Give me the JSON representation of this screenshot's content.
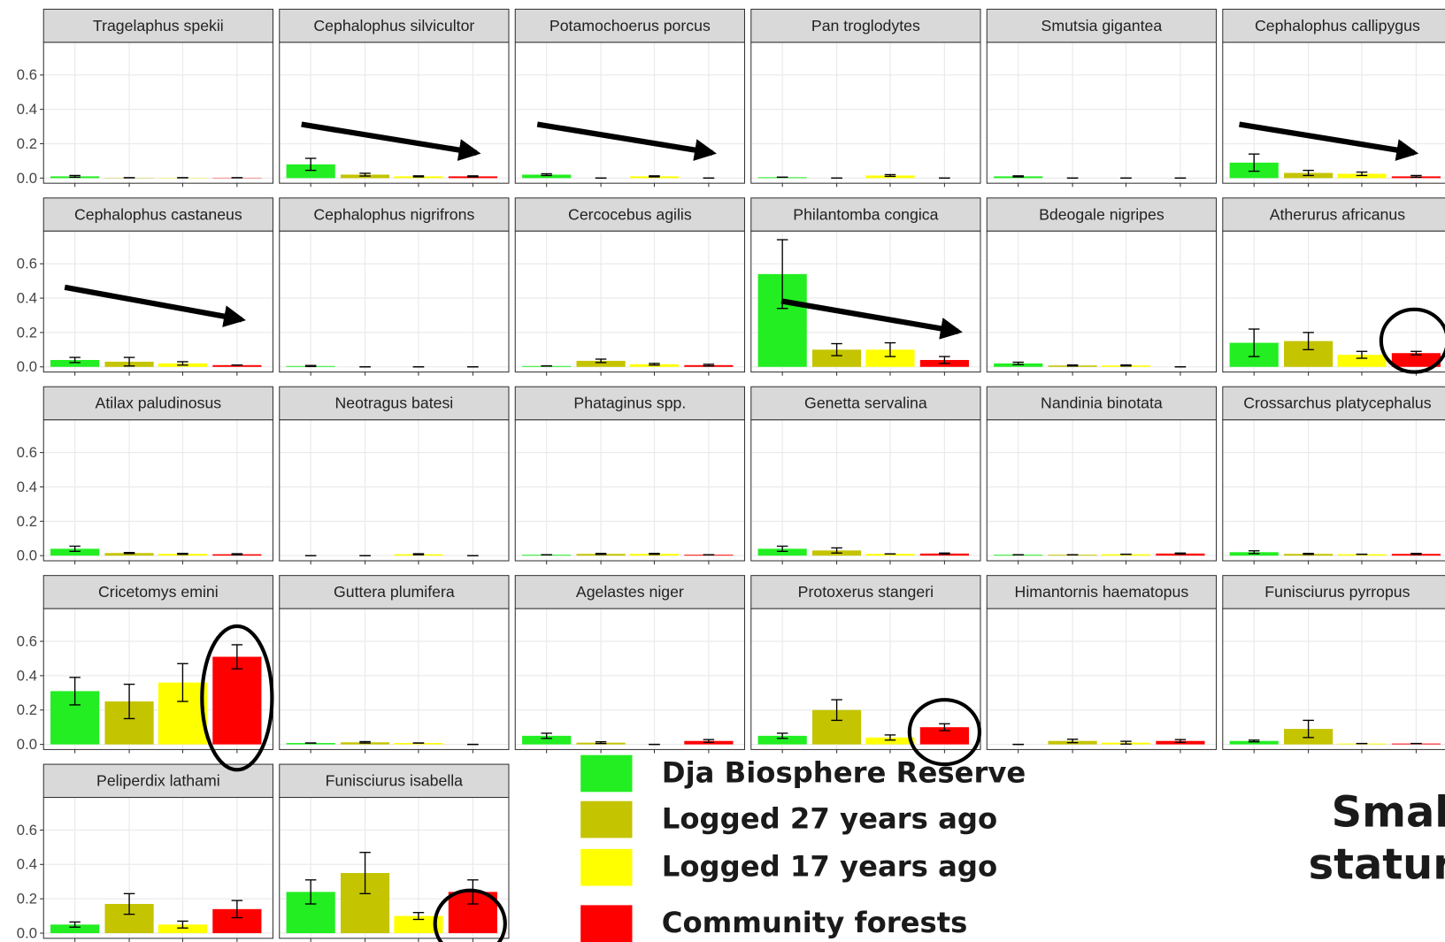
{
  "chart_data": {
    "type": "facet-bar",
    "ylim": [
      -0.03,
      0.79
    ],
    "yticks": [
      {
        "value": 0,
        "label": "0.0"
      },
      {
        "value": 0.2,
        "label": "0.2"
      },
      {
        "value": 0.4,
        "label": "0.4"
      },
      {
        "value": 0.6,
        "label": "0.6"
      }
    ],
    "grid": true,
    "series": [
      {
        "name": "Dja Biosphere Reserve",
        "color": "#22ee22"
      },
      {
        "name": "Logged 27 years ago",
        "color": "#c4c400"
      },
      {
        "name": "Logged 17 years ago",
        "color": "#ffff00"
      },
      {
        "name": "Community forests",
        "color": "#ff0000"
      }
    ],
    "panels": [
      {
        "title": "Tragelaphus spekii",
        "values": [
          0.01,
          0.002,
          0.002,
          0.002
        ],
        "errors": [
          0.005,
          0,
          0,
          0
        ]
      },
      {
        "title": "Cephalophus silvicultor",
        "values": [
          0.08,
          0.02,
          0.01,
          0.01
        ],
        "errors": [
          0.035,
          0.008,
          0.003,
          0.003
        ]
      },
      {
        "title": "Potamochoerus porcus",
        "values": [
          0.02,
          0,
          0.01,
          0
        ],
        "errors": [
          0.005,
          0,
          0.003,
          0
        ]
      },
      {
        "title": "Pan troglodytes",
        "values": [
          0.005,
          0,
          0.015,
          0
        ],
        "errors": [
          0,
          0,
          0.005,
          0
        ]
      },
      {
        "title": "Smutsia gigantea",
        "values": [
          0.01,
          0,
          0,
          0
        ],
        "errors": [
          0.003,
          0,
          0,
          0
        ]
      },
      {
        "title": "Cephalophus callipygus",
        "values": [
          0.09,
          0.03,
          0.025,
          0.01
        ],
        "errors": [
          0.05,
          0.015,
          0.01,
          0.005
        ]
      },
      {
        "title": "Cephalophus castaneus",
        "values": [
          0.04,
          0.03,
          0.02,
          0.01
        ],
        "errors": [
          0.015,
          0.025,
          0.01,
          0
        ]
      },
      {
        "title": "Cephalophus nigrifrons",
        "values": [
          0.005,
          0,
          0,
          0
        ],
        "errors": [
          0.003,
          0,
          0,
          0
        ]
      },
      {
        "title": "Cercocebus agilis",
        "values": [
          0.005,
          0.035,
          0.015,
          0.01
        ],
        "errors": [
          0,
          0.01,
          0.005,
          0.005
        ]
      },
      {
        "title": "Philantomba congica",
        "values": [
          0.54,
          0.1,
          0.1,
          0.04
        ],
        "errors": [
          0.2,
          0.035,
          0.04,
          0.02
        ]
      },
      {
        "title": "Bdeogale nigripes",
        "values": [
          0.02,
          0.008,
          0.008,
          0
        ],
        "errors": [
          0.007,
          0.003,
          0.003,
          0
        ]
      },
      {
        "title": "Atherurus africanus",
        "values": [
          0.14,
          0.15,
          0.07,
          0.08
        ],
        "errors": [
          0.08,
          0.05,
          0.02,
          0.01
        ]
      },
      {
        "title": "Atilax paludinosus",
        "values": [
          0.04,
          0.015,
          0.01,
          0.008
        ],
        "errors": [
          0.015,
          0.003,
          0.003,
          0.003
        ]
      },
      {
        "title": "Neotragus batesi",
        "values": [
          0,
          0,
          0.008,
          0
        ],
        "errors": [
          0,
          0,
          0.003,
          0
        ]
      },
      {
        "title": "Phataginus spp.",
        "values": [
          0.005,
          0.01,
          0.01,
          0.005
        ],
        "errors": [
          0,
          0.003,
          0.003,
          0
        ]
      },
      {
        "title": "Genetta servalina",
        "values": [
          0.04,
          0.03,
          0.01,
          0.012
        ],
        "errors": [
          0.015,
          0.015,
          0,
          0.003
        ]
      },
      {
        "title": "Nandinia binotata",
        "values": [
          0.005,
          0.005,
          0.008,
          0.012
        ],
        "errors": [
          0,
          0,
          0,
          0.003
        ]
      },
      {
        "title": "Crossarchus platycephalus",
        "values": [
          0.02,
          0.01,
          0.008,
          0.01
        ],
        "errors": [
          0.008,
          0.003,
          0,
          0.003
        ]
      },
      {
        "title": "Cricetomys emini",
        "values": [
          0.31,
          0.25,
          0.36,
          0.51
        ],
        "errors": [
          0.08,
          0.1,
          0.11,
          0.07
        ]
      },
      {
        "title": "Guttera plumifera",
        "values": [
          0.008,
          0.012,
          0.008,
          0
        ],
        "errors": [
          0,
          0.004,
          0,
          0
        ]
      },
      {
        "title": "Agelastes niger",
        "values": [
          0.05,
          0.01,
          0,
          0.02
        ],
        "errors": [
          0.015,
          0.005,
          0,
          0.008
        ]
      },
      {
        "title": "Protoxerus stangeri",
        "values": [
          0.05,
          0.2,
          0.04,
          0.1
        ],
        "errors": [
          0.015,
          0.06,
          0.015,
          0.02
        ]
      },
      {
        "title": "Himantornis haematopus",
        "values": [
          0,
          0.02,
          0.01,
          0.02
        ],
        "errors": [
          0,
          0.01,
          0.008,
          0.008
        ]
      },
      {
        "title": "Funisciurus pyrropus",
        "values": [
          0.02,
          0.09,
          0.005,
          0.005
        ],
        "errors": [
          0.005,
          0.05,
          0,
          0
        ]
      },
      {
        "title": "Peliperdix lathami",
        "values": [
          0.05,
          0.17,
          0.05,
          0.14
        ],
        "errors": [
          0.015,
          0.06,
          0.02,
          0.05
        ]
      },
      {
        "title": "Funisciurus isabella",
        "values": [
          0.24,
          0.35,
          0.1,
          0.24
        ],
        "errors": [
          0.07,
          0.12,
          0.02,
          0.07
        ]
      }
    ],
    "side_text": [
      "Smal",
      "statur"
    ]
  }
}
